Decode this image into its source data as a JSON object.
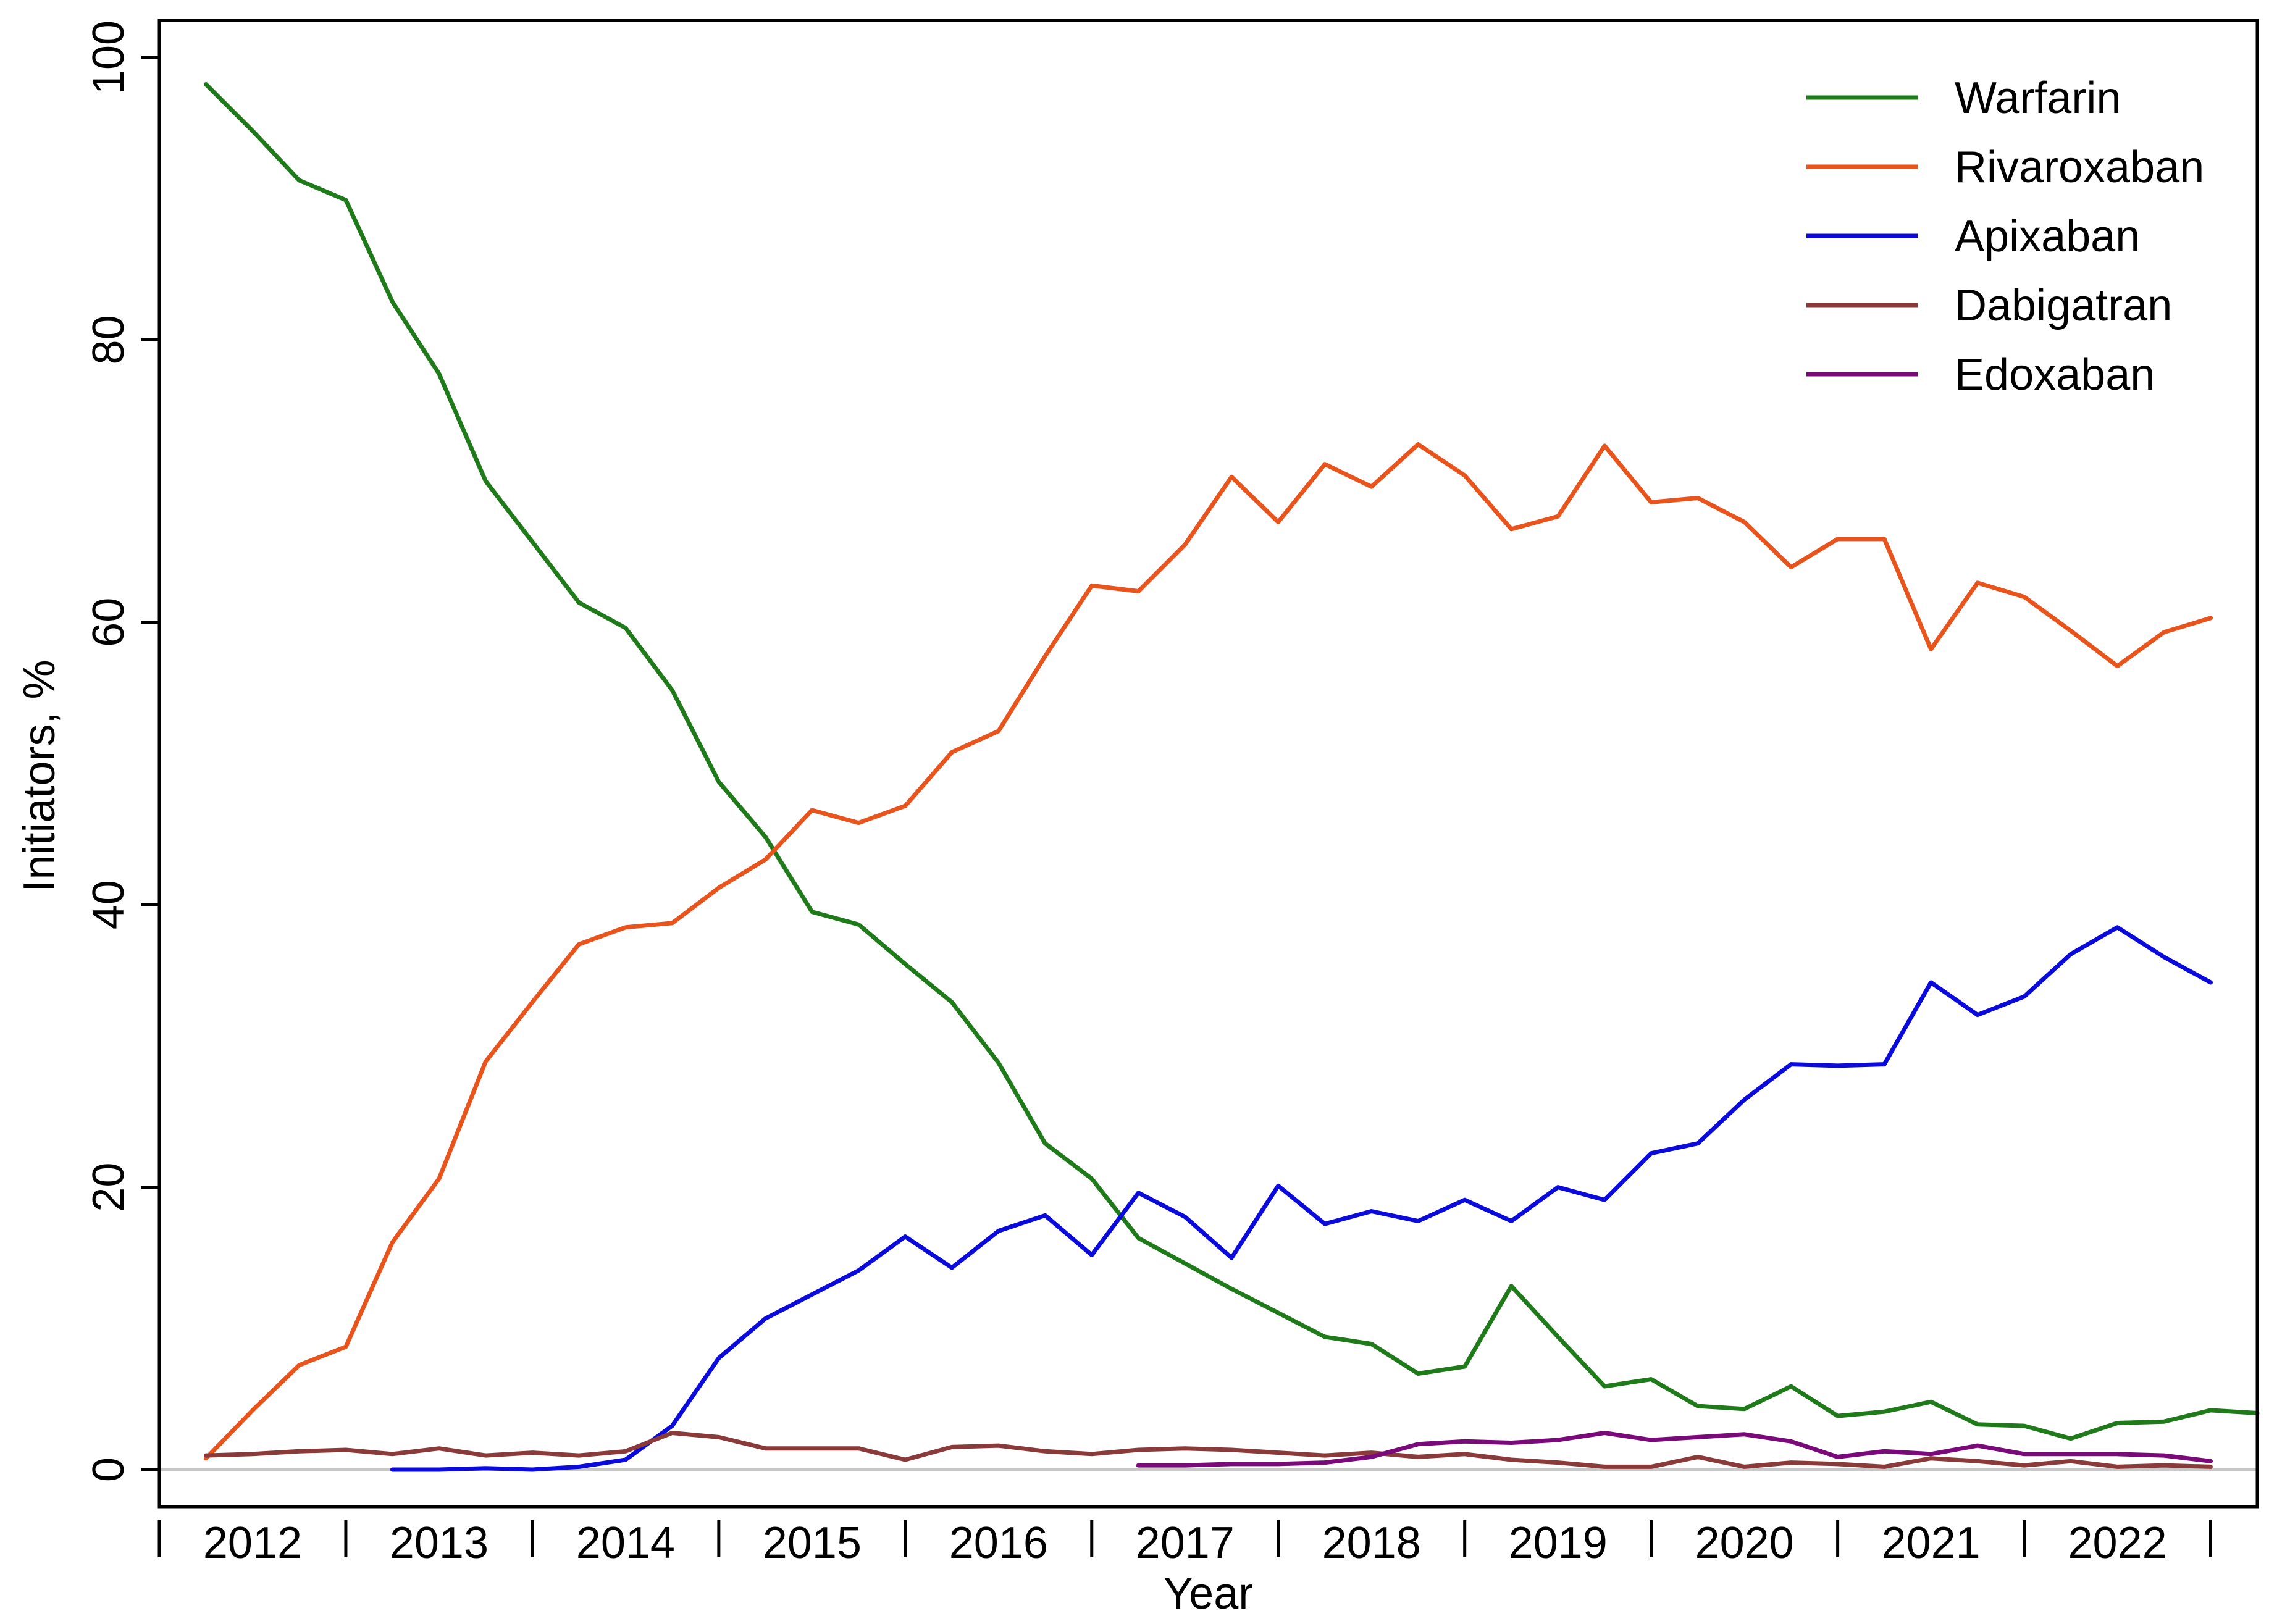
{
  "chart_data": {
    "type": "line",
    "title": "",
    "xlabel": "Year",
    "ylabel": "Initiators, %",
    "ylim": [
      0,
      100
    ],
    "y_ticks": [
      "0",
      "20",
      "40",
      "60",
      "80",
      "100"
    ],
    "x_range": [
      2011.75,
      2023.0
    ],
    "year_labels": [
      "2012",
      "2013",
      "2014",
      "2015",
      "2016",
      "2017",
      "2018",
      "2019",
      "2020",
      "2021",
      "2022"
    ],
    "grid": false,
    "reference_line": {
      "y": 0,
      "color": "#c8c8c8"
    },
    "legend": {
      "placement": "top-right"
    },
    "series": [
      {
        "name": "Warfarin",
        "color": "#1f7a1a",
        "x": [
          2012.0,
          2012.25,
          2012.5,
          2012.75,
          2013.0,
          2013.25,
          2013.5,
          2013.75,
          2014.0,
          2014.25,
          2014.5,
          2014.75,
          2015.0,
          2015.25,
          2015.5,
          2015.75,
          2016.0,
          2016.25,
          2016.5,
          2016.75,
          2017.0,
          2017.25,
          2017.5,
          2017.75,
          2018.0,
          2018.25,
          2018.5,
          2018.75,
          2019.0,
          2019.25,
          2019.5,
          2019.75,
          2020.0,
          2020.25,
          2020.5,
          2020.75,
          2021.0,
          2021.25,
          2021.5,
          2021.75,
          2022.0,
          2022.25,
          2022.5,
          2022.75,
          2023.0
        ],
        "values": [
          98.1,
          94.8,
          91.3,
          89.9,
          82.7,
          77.6,
          70.0,
          65.7,
          61.4,
          59.6,
          55.2,
          48.7,
          44.8,
          39.5,
          38.6,
          35.8,
          33.1,
          28.8,
          23.1,
          20.6,
          16.4,
          14.6,
          12.8,
          11.1,
          9.4,
          8.9,
          6.8,
          7.3,
          13.0,
          9.4,
          5.9,
          6.4,
          4.5,
          4.3,
          5.9,
          3.8,
          4.1,
          4.8,
          3.2,
          3.1,
          2.2,
          3.3,
          3.4,
          4.2,
          4.0
        ],
        "comment_count": 45
      },
      {
        "name": "Rivaroxaban",
        "color": "#e8541c",
        "x": [
          2012.0,
          2012.25,
          2012.5,
          2012.75,
          2013.0,
          2013.25,
          2013.5,
          2013.75,
          2014.0,
          2014.25,
          2014.5,
          2014.75,
          2015.0,
          2015.25,
          2015.5,
          2015.75,
          2016.0,
          2016.25,
          2016.5,
          2016.75,
          2017.0,
          2017.25,
          2017.5,
          2017.75,
          2018.0,
          2018.25,
          2018.5,
          2018.75,
          2019.0,
          2019.25,
          2019.5,
          2019.75,
          2020.0,
          2020.25,
          2020.5,
          2020.75,
          2021.0,
          2021.25,
          2021.5,
          2021.75,
          2022.0,
          2022.25,
          2022.5,
          2022.75
        ],
        "values": [
          0.8,
          4.2,
          7.4,
          8.7,
          16.1,
          20.6,
          28.9,
          33.1,
          37.2,
          38.4,
          38.7,
          41.2,
          43.2,
          46.7,
          45.8,
          47.0,
          50.8,
          52.3,
          57.6,
          62.6,
          62.2,
          65.5,
          70.3,
          67.1,
          71.2,
          69.6,
          72.6,
          70.4,
          66.6,
          67.5,
          72.5,
          68.5,
          68.8,
          67.1,
          63.9,
          65.9,
          65.9,
          58.1,
          62.8,
          61.8,
          59.4,
          56.9,
          59.3,
          60.3
        ]
      },
      {
        "name": "Apixaban",
        "color": "#0a0adc",
        "x": [
          2013.0,
          2013.25,
          2013.5,
          2013.75,
          2014.0,
          2014.25,
          2014.5,
          2014.75,
          2015.0,
          2015.25,
          2015.5,
          2015.75,
          2016.0,
          2016.25,
          2016.5,
          2016.75,
          2017.0,
          2017.25,
          2017.5,
          2017.75,
          2018.0,
          2018.25,
          2018.5,
          2018.75,
          2019.0,
          2019.25,
          2019.5,
          2019.75,
          2020.0,
          2020.25,
          2020.5,
          2020.75,
          2021.0,
          2021.25,
          2021.5,
          2021.75,
          2022.0,
          2022.25,
          2022.5,
          2022.75
        ],
        "values": [
          0.0,
          0.0,
          0.1,
          0.0,
          0.2,
          0.7,
          3.1,
          7.9,
          10.7,
          12.4,
          14.1,
          16.5,
          14.3,
          16.9,
          18.0,
          15.2,
          19.6,
          17.9,
          15.0,
          20.1,
          17.4,
          18.3,
          17.6,
          19.1,
          17.6,
          20.0,
          19.1,
          22.4,
          23.1,
          26.2,
          28.7,
          28.6,
          28.7,
          34.5,
          32.2,
          33.5,
          36.5,
          38.4,
          36.3,
          34.5
        ]
      },
      {
        "name": "Dabigatran",
        "color": "#8b3a3a",
        "x": [
          2012.0,
          2012.25,
          2012.5,
          2012.75,
          2013.0,
          2013.25,
          2013.5,
          2013.75,
          2014.0,
          2014.25,
          2014.5,
          2014.75,
          2015.0,
          2015.25,
          2015.5,
          2015.75,
          2016.0,
          2016.25,
          2016.5,
          2016.75,
          2017.0,
          2017.25,
          2017.5,
          2017.75,
          2018.0,
          2018.25,
          2018.5,
          2018.75,
          2019.0,
          2019.25,
          2019.5,
          2019.75,
          2020.0,
          2020.25,
          2020.5,
          2020.75,
          2021.0,
          2021.25,
          2021.5,
          2021.75,
          2022.0,
          2022.25,
          2022.5,
          2022.75
        ],
        "values": [
          1.0,
          1.1,
          1.3,
          1.4,
          1.1,
          1.5,
          1.0,
          1.2,
          1.0,
          1.3,
          2.6,
          2.3,
          1.5,
          1.5,
          1.5,
          0.7,
          1.6,
          1.7,
          1.3,
          1.1,
          1.4,
          1.5,
          1.4,
          1.2,
          1.0,
          1.2,
          0.9,
          1.1,
          0.7,
          0.5,
          0.2,
          0.2,
          0.9,
          0.2,
          0.5,
          0.4,
          0.2,
          0.8,
          0.6,
          0.3,
          0.6,
          0.2,
          0.3,
          0.2
        ]
      },
      {
        "name": "Edoxaban",
        "color": "#7a0a7a",
        "x": [
          2017.0,
          2017.25,
          2017.5,
          2017.75,
          2018.0,
          2018.25,
          2018.5,
          2018.75,
          2019.0,
          2019.25,
          2019.5,
          2019.75,
          2020.0,
          2020.25,
          2020.5,
          2020.75,
          2021.0,
          2021.25,
          2021.5,
          2021.75,
          2022.0,
          2022.25,
          2022.5,
          2022.75
        ],
        "values": [
          0.3,
          0.3,
          0.4,
          0.4,
          0.5,
          0.9,
          1.8,
          2.0,
          1.9,
          2.1,
          2.6,
          2.1,
          2.3,
          2.5,
          2.0,
          0.9,
          1.3,
          1.1,
          1.7,
          1.1,
          1.1,
          1.1,
          1.0,
          0.6
        ]
      }
    ]
  }
}
